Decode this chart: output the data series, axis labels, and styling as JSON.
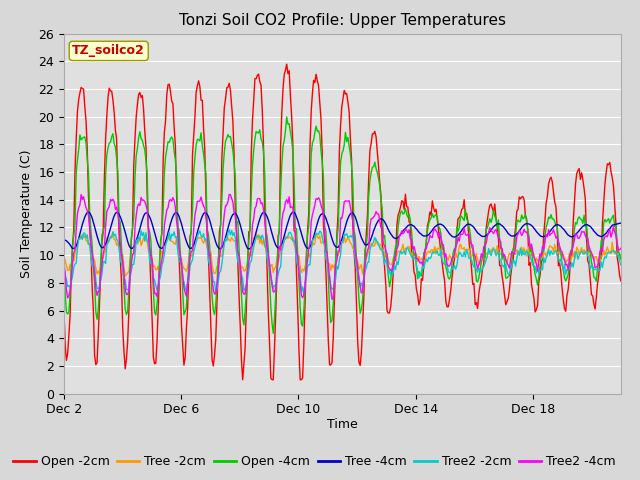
{
  "title": "Tonzi Soil CO2 Profile: Upper Temperatures",
  "ylabel": "Soil Temperature (C)",
  "xlabel": "Time",
  "annotation": "TZ_soilco2",
  "ylim": [
    0,
    26
  ],
  "yticks": [
    0,
    2,
    4,
    6,
    8,
    10,
    12,
    14,
    16,
    18,
    20,
    22,
    24,
    26
  ],
  "xtick_labels": [
    "Dec 2",
    "Dec 6",
    "Dec 10",
    "Dec 14",
    "Dec 18"
  ],
  "xtick_positions": [
    0,
    4,
    8,
    12,
    16
  ],
  "background_color": "#d8d8d8",
  "plot_bg_color": "#e0e0e0",
  "legend_entries": [
    "Open -2cm",
    "Tree -2cm",
    "Open -4cm",
    "Tree -4cm",
    "Tree2 -2cm",
    "Tree2 -4cm"
  ],
  "legend_colors": [
    "#ff0000",
    "#ff9900",
    "#00cc00",
    "#0000cc",
    "#00cccc",
    "#ff00ff"
  ],
  "title_fontsize": 11,
  "label_fontsize": 9,
  "tick_fontsize": 9,
  "legend_fontsize": 9
}
